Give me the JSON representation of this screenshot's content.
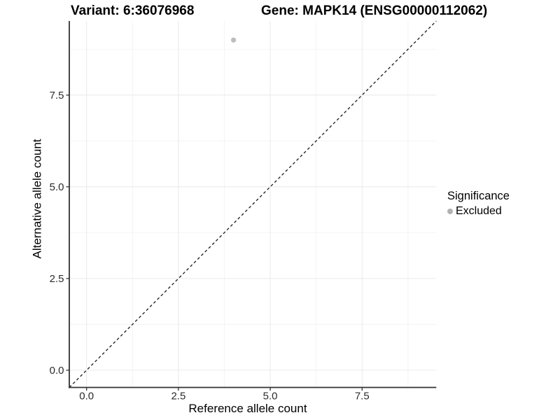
{
  "chart_data": {
    "type": "scatter",
    "title": "Variant: 6:36076968    Gene: MAPK14 (ENSG00000112062)",
    "header": {
      "left": "Variant: 6:36076968",
      "right": "Gene: MAPK14 (ENSG00000112062)"
    },
    "xlabel": "Reference allele count",
    "ylabel": "Alternative allele count",
    "xlim": [
      -0.47,
      9.52
    ],
    "ylim": [
      -0.47,
      9.52
    ],
    "x_ticks": {
      "values": [
        0,
        2.5,
        5,
        7.5
      ],
      "labels": [
        "0.0",
        "2.5",
        "5.0",
        "7.5"
      ]
    },
    "y_ticks": {
      "values": [
        0,
        2.5,
        5,
        7.5
      ],
      "labels": [
        "0.0",
        "2.5",
        "5.0",
        "7.5"
      ]
    },
    "minor_gridlines": [
      1.25,
      3.75,
      6.25,
      8.75
    ],
    "grid": "major+minor",
    "reference_line": {
      "type": "identity",
      "slope": 1,
      "intercept": 0,
      "style": "dashed"
    },
    "series": [
      {
        "name": "Excluded",
        "color": "#bcbcbc",
        "points": [
          {
            "x": 4,
            "y": 9
          }
        ]
      }
    ],
    "legend": {
      "title": "Significance",
      "position": "right",
      "items": [
        {
          "label": "Excluded",
          "color": "#b3b3b3"
        }
      ]
    },
    "colors": {
      "background": "#ffffff",
      "grid_major": "#ebebeb",
      "grid_minor": "#f3f3f3",
      "axis_line": "#333333",
      "tick_mark": "#333333",
      "tick_text": "#2b2b2b",
      "reference_line": "#1a1a1a",
      "point": "#bcbcbc"
    }
  }
}
